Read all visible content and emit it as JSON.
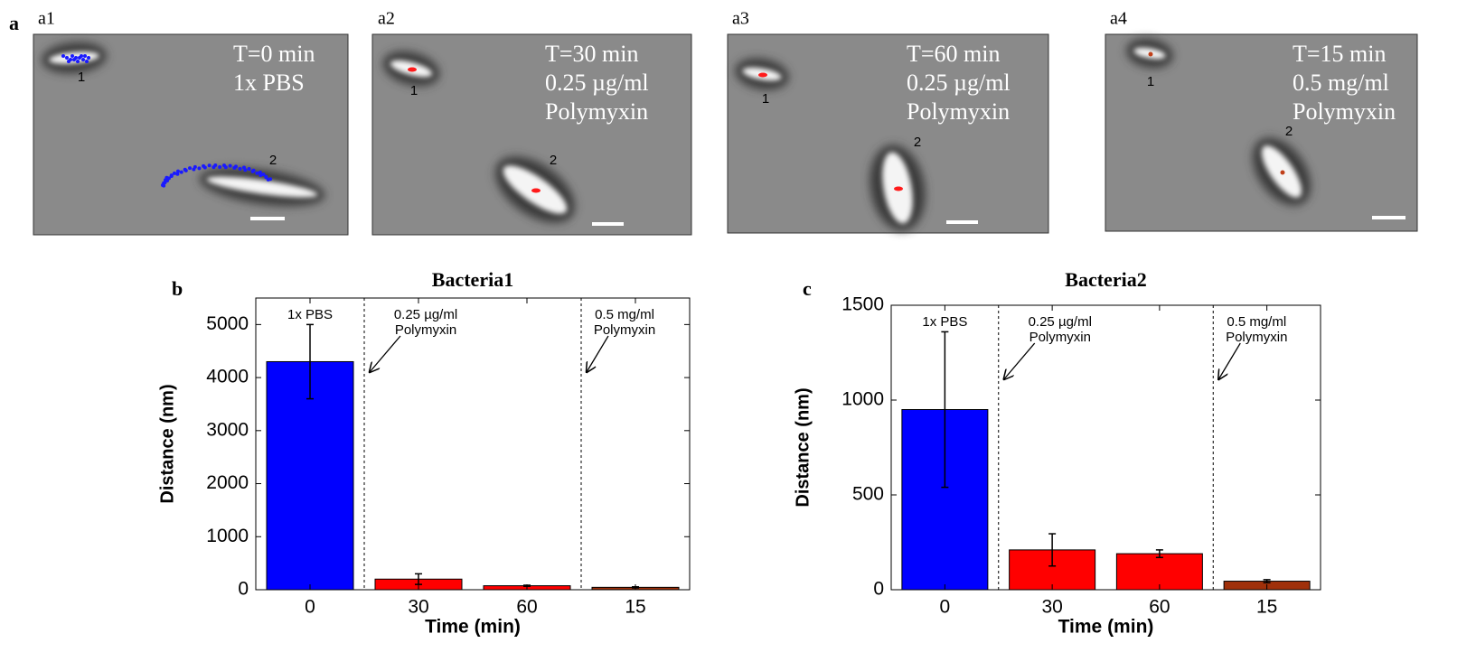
{
  "panel_label": "a",
  "images": [
    {
      "label": "a1",
      "lines": [
        "T=0 min",
        "1x PBS"
      ],
      "markers": [
        "1",
        "2"
      ]
    },
    {
      "label": "a2",
      "lines": [
        "T=30 min",
        "0.25 µg/ml",
        "Polymyxin"
      ],
      "markers": [
        "1",
        "2"
      ]
    },
    {
      "label": "a3",
      "lines": [
        "T=60 min",
        "0.25 µg/ml",
        "Polymyxin"
      ],
      "markers": [
        "1",
        "2"
      ]
    },
    {
      "label": "a4",
      "lines": [
        "T=15 min",
        "0.5 mg/ml",
        "Polymyxin"
      ],
      "markers": [
        "1",
        "2"
      ]
    }
  ],
  "chart_data": [
    {
      "type": "bar",
      "panel_label": "b",
      "title": "Bacteria1",
      "ylabel": "Distance (nm)",
      "xlabel": "Time (min)",
      "categories": [
        "0",
        "30",
        "60",
        "15"
      ],
      "values": [
        4300,
        200,
        75,
        45
      ],
      "errors": [
        700,
        100,
        10,
        10
      ],
      "colors": [
        "#0000ff",
        "#ff0000",
        "#ff0000",
        "#a0300a"
      ],
      "ylim": [
        0,
        5500
      ],
      "yticks": [
        0,
        1000,
        2000,
        3000,
        4000,
        5000
      ],
      "annotations": [
        [
          "1x PBS"
        ],
        [
          "0.25 µg/ml",
          "Polymyxin"
        ],
        [
          "0.5 mg/ml",
          "Polymyxin"
        ]
      ]
    },
    {
      "type": "bar",
      "panel_label": "c",
      "title": "Bacteria2",
      "ylabel": "Distance (nm)",
      "xlabel": "Time (min)",
      "categories": [
        "0",
        "30",
        "60",
        "15"
      ],
      "values": [
        950,
        210,
        190,
        45
      ],
      "errors": [
        410,
        85,
        20,
        8
      ],
      "colors": [
        "#0000ff",
        "#ff0000",
        "#ff0000",
        "#a0300a"
      ],
      "ylim": [
        0,
        1500
      ],
      "yticks": [
        0,
        500,
        1000,
        1500
      ],
      "annotations": [
        [
          "1x PBS"
        ],
        [
          "0.25 µg/ml",
          "Polymyxin"
        ],
        [
          "0.5 mg/ml",
          "Polymyxin"
        ]
      ]
    }
  ]
}
